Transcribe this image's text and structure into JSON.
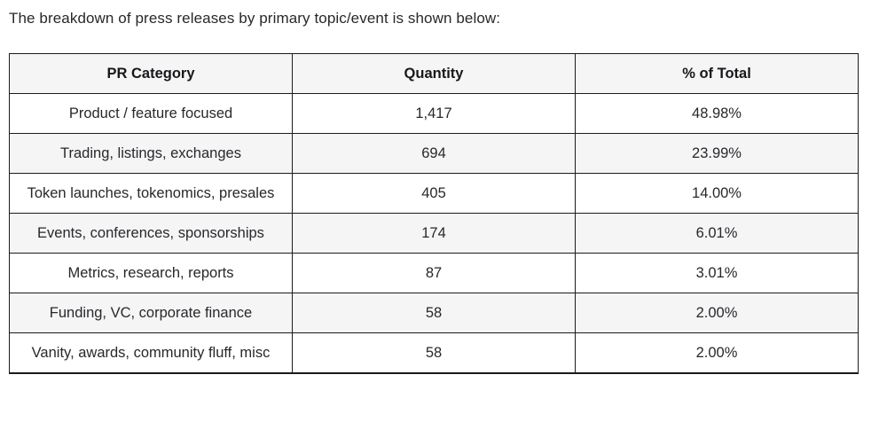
{
  "intro": {
    "text": "The breakdown of press releases by primary topic/event is shown below:"
  },
  "table": {
    "headers": {
      "category": "PR Category",
      "quantity": "Quantity",
      "percent": "% of Total"
    },
    "rows": [
      {
        "category": "Product / feature focused",
        "quantity": "1,417",
        "percent": "48.98%"
      },
      {
        "category": "Trading, listings, exchanges",
        "quantity": "694",
        "percent": "23.99%"
      },
      {
        "category": "Token launches, tokenomics, presales",
        "quantity": "405",
        "percent": "14.00%"
      },
      {
        "category": "Events, conferences, sponsorships",
        "quantity": "174",
        "percent": "6.01%"
      },
      {
        "category": "Metrics, research, reports",
        "quantity": "87",
        "percent": "3.01%"
      },
      {
        "category": "Funding, VC, corporate finance",
        "quantity": "58",
        "percent": "2.00%"
      },
      {
        "category": "Vanity, awards, community fluff, misc",
        "quantity": "58",
        "percent": "2.00%"
      }
    ]
  },
  "colors": {
    "border": "#1b1b1b",
    "stripe_background": "#f5f5f6",
    "text": "#26282b",
    "page_background": "#ffffff"
  }
}
